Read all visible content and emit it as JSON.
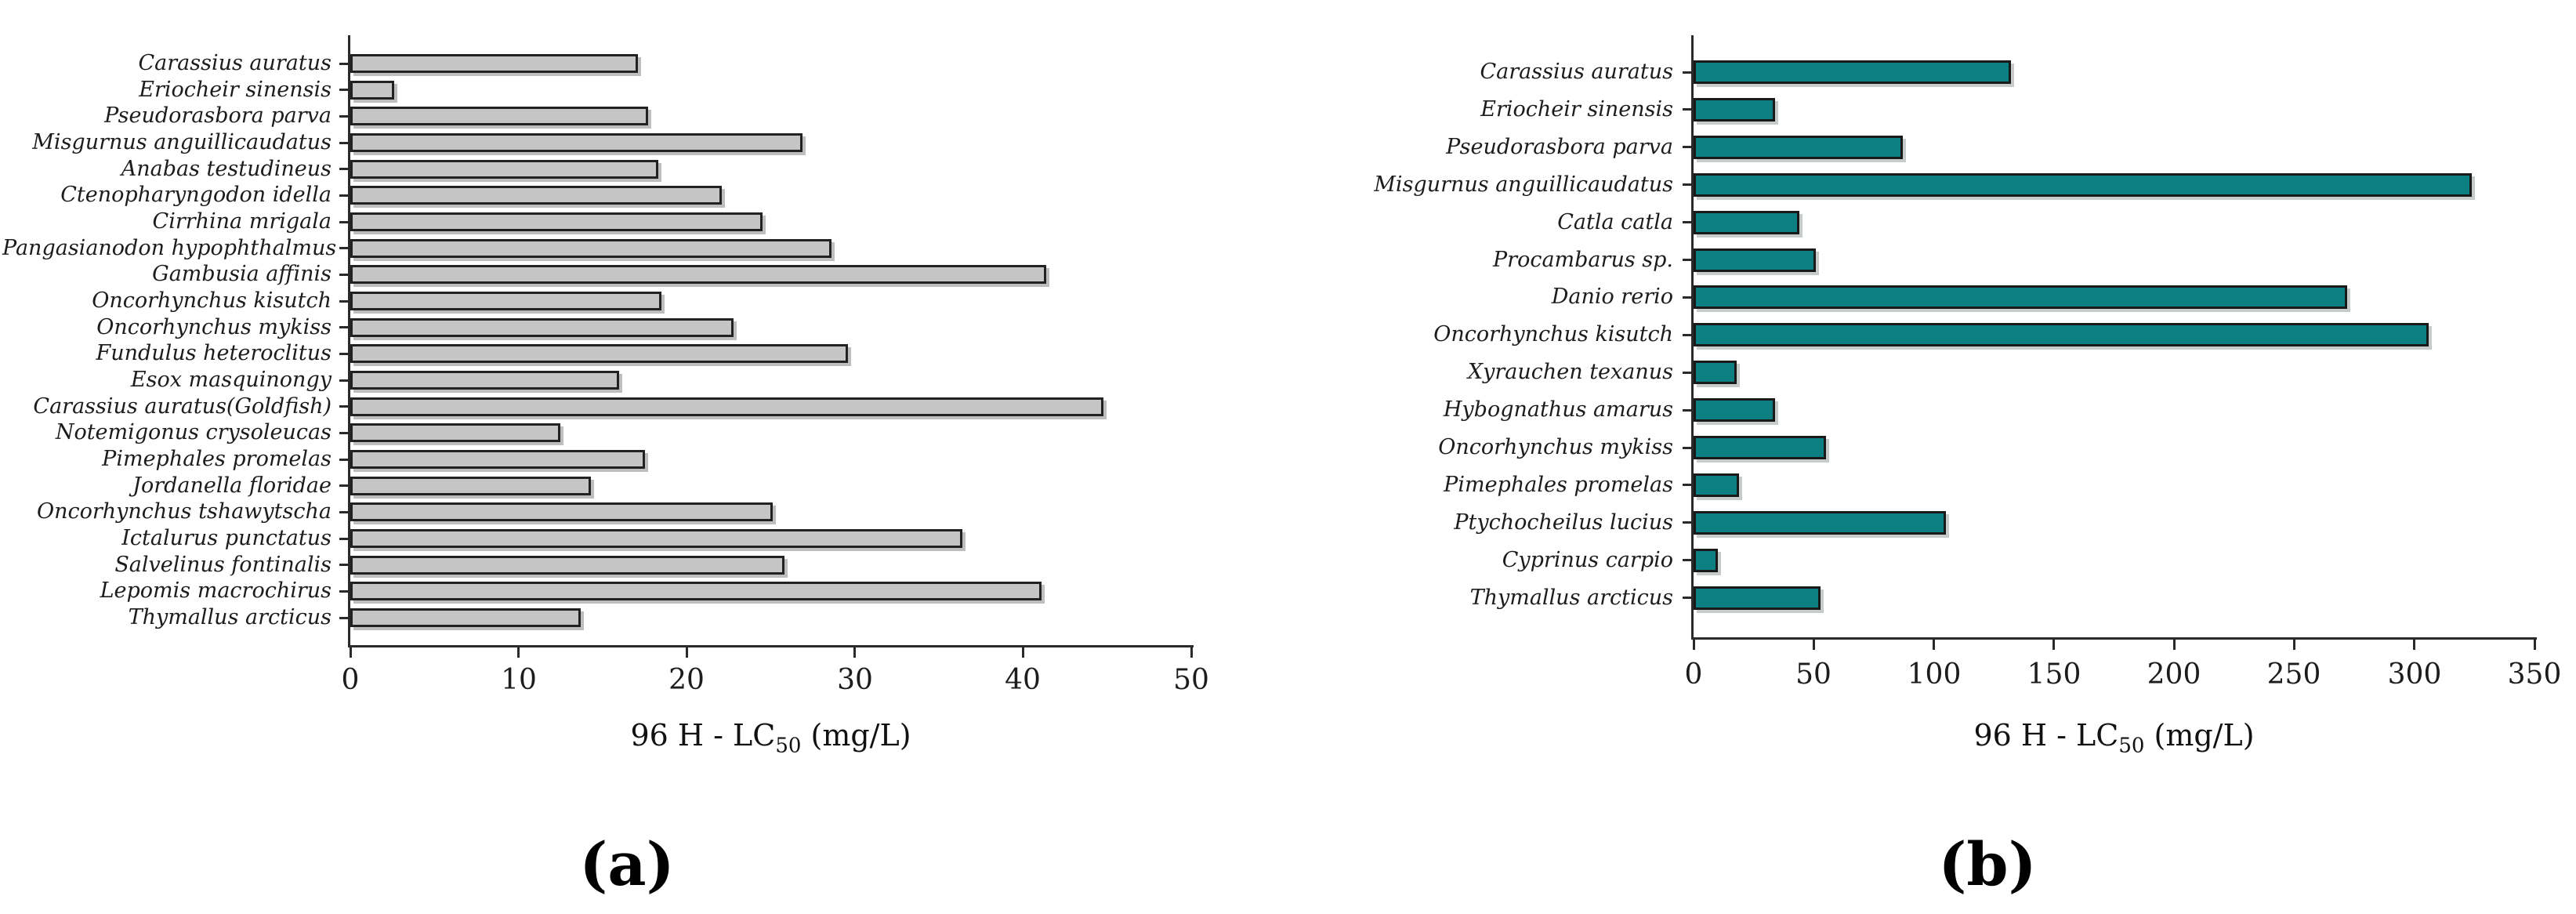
{
  "figure": {
    "background": "#ffffff",
    "captions": {
      "a": "(a)",
      "b": "(b)"
    }
  },
  "chart_data": [
    {
      "id": "a",
      "type": "bar",
      "orientation": "horizontal",
      "caption": "(a)",
      "xlabel": "96 H - LC50 (mg/L)",
      "xlabel_parts": {
        "prefix": "96 H - LC",
        "sub": "50",
        "suffix": " (mg/L)"
      },
      "xlim": [
        0,
        50
      ],
      "xticks": [
        0,
        10,
        20,
        30,
        40,
        50
      ],
      "grid": false,
      "legend": "none",
      "bar_color": "#c5c5c5",
      "bar_border_color": "#222222",
      "categories": [
        "Carassius auratus",
        "Eriocheir sinensis",
        "Pseudorasbora parva",
        "Misgurnus anguillicaudatus",
        "Anabas testudineus",
        "Ctenopharyngodon idella",
        "Cirrhina mrigala",
        "Pangasianodon hypophthalmus",
        "Gambusia affinis",
        "Oncorhynchus kisutch",
        "Oncorhynchus mykiss",
        "Fundulus heteroclitus",
        "Esox masquinongy",
        "Carassius auratus(Goldfish)",
        "Notemigonus crysoleucas",
        "Pimephales promelas",
        "Jordanella floridae",
        "Oncorhynchus tshawytscha",
        "Ictalurus punctatus",
        "Salvelinus fontinalis",
        "Lepomis macrochirus",
        "Thymallus arcticus"
      ],
      "values": [
        17.1,
        2.6,
        17.7,
        26.9,
        18.3,
        22.1,
        24.5,
        28.6,
        41.4,
        18.5,
        22.8,
        29.6,
        16,
        44.8,
        12.5,
        17.5,
        14.3,
        25.1,
        36.4,
        25.8,
        41.1,
        13.7
      ]
    },
    {
      "id": "b",
      "type": "bar",
      "orientation": "horizontal",
      "caption": "(b)",
      "xlabel": "96 H - LC50 (mg/L)",
      "xlabel_parts": {
        "prefix": "96 H - LC",
        "sub": "50",
        "suffix": " (mg/L)"
      },
      "xlim": [
        0,
        350
      ],
      "xticks": [
        0,
        50,
        100,
        150,
        200,
        250,
        300,
        350
      ],
      "grid": false,
      "legend": "none",
      "bar_color": "#0b7f81",
      "bar_border_color": "#1a1a1a",
      "categories": [
        "Carassius auratus",
        "Eriocheir sinensis",
        "Pseudorasbora parva",
        "Misgurnus anguillicaudatus",
        "Catla catla",
        "Procambarus sp.",
        "Danio rerio",
        "Oncorhynchus kisutch",
        "Xyrauchen texanus",
        "Hybognathus amarus",
        "Oncorhynchus mykiss",
        "Pimephales promelas",
        "Ptychocheilus lucius",
        "Cyprinus carpio",
        "Thymallus arcticus"
      ],
      "values": [
        132,
        34,
        87,
        324,
        44,
        51,
        272,
        306,
        18,
        34,
        55,
        19,
        105,
        10,
        53
      ]
    }
  ]
}
